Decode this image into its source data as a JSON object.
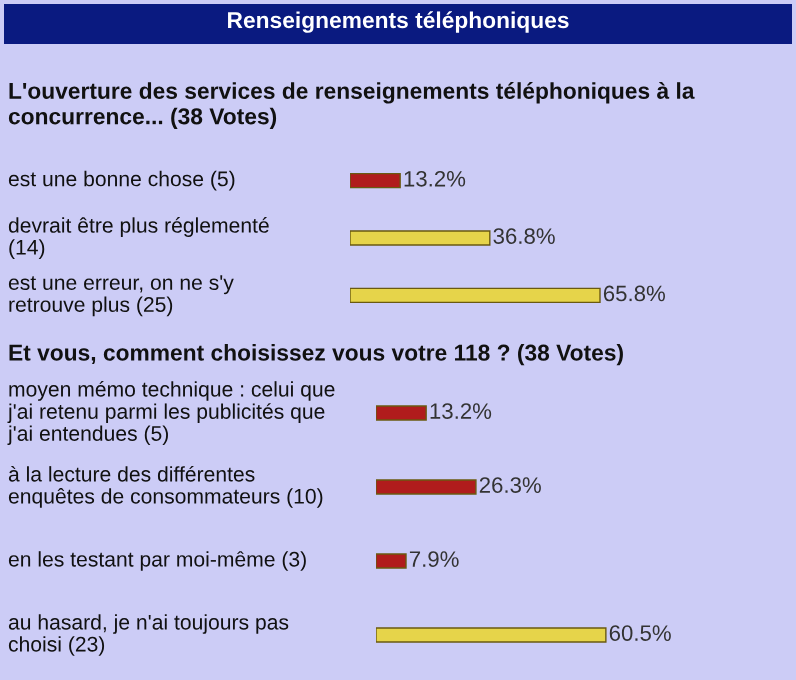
{
  "chart_data": [
    {
      "type": "bar",
      "orientation": "horizontal",
      "title": "Renseignements téléphoniques",
      "subtitle": "L'ouverture des services de renseignements téléphoniques à la concurrence... (38 Votes)",
      "categories": [
        "est une bonne chose (5)",
        "devrait être plus réglementé (14)",
        "est une erreur, on ne s'y retrouve plus (25)"
      ],
      "values": [
        13.2,
        36.8,
        65.8
      ],
      "colors": [
        "#b01c1c",
        "#e6d44a",
        "#e6d44a"
      ],
      "value_labels": [
        "13.2%",
        "36.8%",
        "65.8%"
      ]
    },
    {
      "type": "bar",
      "orientation": "horizontal",
      "title": "Et vous, comment choisissez vous votre 118 ? (38 Votes)",
      "categories": [
        "moyen mémo technique : celui que j'ai retenu parmi les publicités que j'ai entendues (5)",
        "à la lecture des différentes enquêtes de consommateurs (10)",
        "en les testant par moi-même (3)",
        "au hasard, je n'ai toujours pas choisi (23)"
      ],
      "values": [
        13.2,
        26.3,
        7.9,
        60.5
      ],
      "colors": [
        "#b01c1c",
        "#b01c1c",
        "#b01c1c",
        "#e6d44a"
      ],
      "value_labels": [
        "13.2%",
        "26.3%",
        "7.9%",
        "60.5%"
      ]
    }
  ]
}
